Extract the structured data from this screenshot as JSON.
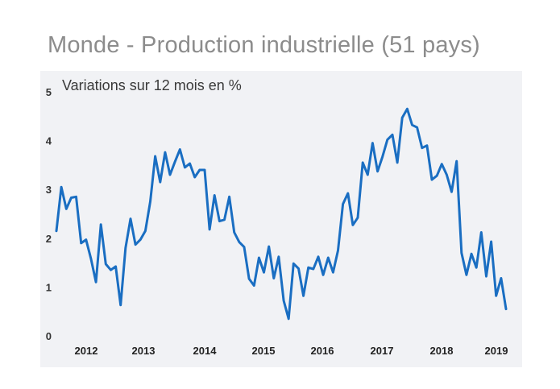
{
  "title": "Monde - Production industrielle (51 pays)",
  "chart_data": {
    "type": "line",
    "title": "Monde - Production industrielle (51 pays)",
    "subtitle": "Variations sur 12 mois en %",
    "xlabel": "",
    "ylabel": "",
    "ylim": [
      0,
      5
    ],
    "y_ticks": [
      "0",
      "1",
      "2",
      "3",
      "4",
      "5"
    ],
    "x_ticks": [
      "2012",
      "2013",
      "2014",
      "2015",
      "2016",
      "2017",
      "2018",
      "2019"
    ],
    "grid": false,
    "line_color": "#1a6ec2",
    "series": [
      {
        "values": [
          2.15,
          3.05,
          2.6,
          2.83,
          2.85,
          1.9,
          1.97,
          1.58,
          1.1,
          2.28,
          1.47,
          1.35,
          1.42,
          0.63,
          1.8,
          2.4,
          1.87,
          1.97,
          2.15,
          2.75,
          3.68,
          3.15,
          3.76,
          3.3,
          3.57,
          3.82,
          3.45,
          3.53,
          3.25,
          3.4,
          3.4,
          2.18,
          2.88,
          2.35,
          2.38,
          2.85,
          2.12,
          1.92,
          1.82,
          1.17,
          1.03,
          1.6,
          1.3,
          1.83,
          1.18,
          1.62,
          0.72,
          0.35,
          1.48,
          1.38,
          0.82,
          1.4,
          1.37,
          1.62,
          1.25,
          1.6,
          1.3,
          1.75,
          2.7,
          2.92,
          2.27,
          2.42,
          3.55,
          3.3,
          3.95,
          3.37,
          3.67,
          4.02,
          4.12,
          3.55,
          4.47,
          4.65,
          4.32,
          4.27,
          3.85,
          3.9,
          3.2,
          3.28,
          3.52,
          3.3,
          2.95,
          3.58,
          1.7,
          1.25,
          1.68,
          1.4,
          2.12,
          1.22,
          1.93,
          0.82,
          1.18,
          0.55
        ]
      }
    ]
  }
}
